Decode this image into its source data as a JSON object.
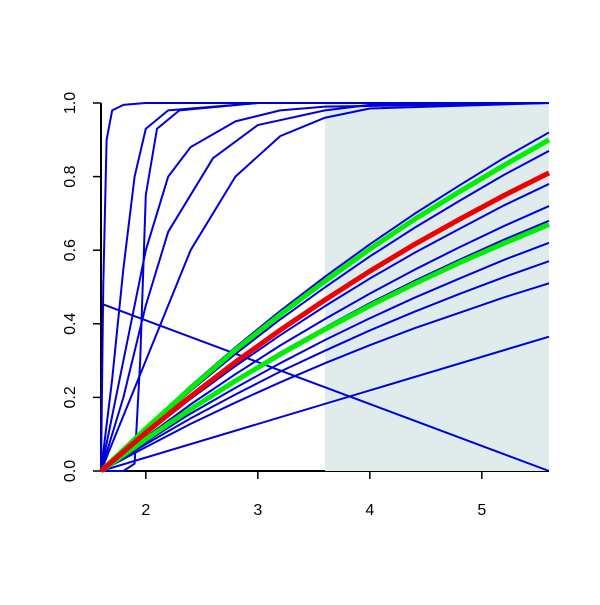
{
  "chart_data": {
    "type": "line",
    "xlim": [
      1.6,
      5.6
    ],
    "ylim": [
      0,
      1
    ],
    "xticks": [
      2,
      3,
      4,
      5
    ],
    "yticks": [
      {
        "value": 0,
        "label": "0.0"
      },
      0.2,
      0.4,
      0.6,
      0.8,
      {
        "value": 1,
        "label": "1.0"
      }
    ],
    "shaded_region": [
      3.6,
      5.6
    ],
    "shade_color": "#e0ecec",
    "series": [
      {
        "color": "#0000dd",
        "width": 2,
        "x": [
          1.6,
          1.62,
          1.65,
          1.7,
          1.8,
          2.0,
          5.6
        ],
        "values": [
          0,
          0.5,
          0.9,
          0.98,
          0.995,
          1,
          1
        ]
      },
      {
        "color": "#0000dd",
        "width": 2,
        "x": [
          1.6,
          1.7,
          1.8,
          1.9,
          2.0,
          2.2,
          3.0,
          5.6
        ],
        "values": [
          0,
          0.25,
          0.55,
          0.8,
          0.93,
          0.98,
          1,
          1
        ]
      },
      {
        "color": "#0000dd",
        "width": 2,
        "x": [
          1.6,
          1.8,
          1.9,
          1.95,
          2.0,
          2.1,
          2.3,
          3.0,
          5.6
        ],
        "values": [
          0,
          0,
          0.02,
          0.3,
          0.75,
          0.93,
          0.98,
          1,
          1
        ]
      },
      {
        "color": "#0000dd",
        "width": 2,
        "x": [
          1.6,
          1.8,
          2.0,
          2.2,
          2.4,
          2.8,
          3.2,
          3.6,
          5.6
        ],
        "values": [
          0,
          0.3,
          0.6,
          0.8,
          0.88,
          0.95,
          0.98,
          0.99,
          1
        ]
      },
      {
        "color": "#0000dd",
        "width": 2,
        "x": [
          1.6,
          1.8,
          2.0,
          2.2,
          2.6,
          3.0,
          3.6,
          4.0,
          5.6
        ],
        "values": [
          0,
          0.2,
          0.45,
          0.65,
          0.85,
          0.94,
          0.98,
          0.995,
          1
        ]
      },
      {
        "color": "#0000dd",
        "width": 2,
        "x": [
          1.6,
          2.0,
          2.4,
          2.8,
          3.2,
          3.6,
          4.0,
          5.6
        ],
        "values": [
          0,
          0.3,
          0.6,
          0.8,
          0.91,
          0.96,
          0.985,
          1
        ]
      },
      {
        "color": "#0000dd",
        "width": 2,
        "x": [
          1.6,
          2.0,
          2.4,
          2.8,
          3.2,
          3.6,
          4.0,
          4.4,
          4.8,
          5.2,
          5.6
        ],
        "values": [
          0,
          0.118,
          0.231,
          0.336,
          0.435,
          0.528,
          0.616,
          0.699,
          0.776,
          0.851,
          0.92
        ]
      },
      {
        "color": "#0000dd",
        "width": 2,
        "x": [
          1.6,
          2.0,
          2.4,
          2.8,
          3.2,
          3.6,
          4.0,
          4.4,
          4.8,
          5.2,
          5.6
        ],
        "values": [
          0,
          0.111,
          0.218,
          0.318,
          0.412,
          0.499,
          0.583,
          0.661,
          0.734,
          0.805,
          0.87
        ]
      },
      {
        "color": "#0000dd",
        "width": 2,
        "x": [
          1.6,
          2.0,
          2.4,
          2.8,
          3.2,
          3.6,
          4.0,
          4.4,
          4.8,
          5.2,
          5.6
        ],
        "values": [
          0,
          0.1,
          0.196,
          0.285,
          0.369,
          0.448,
          0.523,
          0.593,
          0.658,
          0.722,
          0.78
        ]
      },
      {
        "color": "#0000dd",
        "width": 2,
        "x": [
          1.6,
          2.0,
          2.4,
          2.8,
          3.2,
          3.6,
          4.0,
          4.4,
          4.8,
          5.2,
          5.6
        ],
        "values": [
          0,
          0.092,
          0.181,
          0.263,
          0.341,
          0.413,
          0.482,
          0.547,
          0.608,
          0.666,
          0.72
        ]
      },
      {
        "color": "#0000dd",
        "width": 2,
        "x": [
          1.6,
          2.0,
          2.4,
          2.8,
          3.2,
          3.6,
          4.0,
          4.4,
          4.8,
          5.2,
          5.6
        ],
        "values": [
          0,
          0.087,
          0.171,
          0.248,
          0.322,
          0.39,
          0.456,
          0.517,
          0.574,
          0.629,
          0.68
        ]
      },
      {
        "color": "#0000dd",
        "width": 2,
        "x": [
          1.6,
          2.0,
          2.4,
          2.8,
          3.2,
          3.6,
          4.0,
          4.4,
          4.8,
          5.2,
          5.6
        ],
        "values": [
          0,
          0.079,
          0.156,
          0.226,
          0.293,
          0.356,
          0.415,
          0.471,
          0.523,
          0.574,
          0.62
        ]
      },
      {
        "color": "#0000dd",
        "width": 2,
        "x": [
          1.6,
          2.0,
          2.4,
          2.8,
          3.2,
          3.6,
          4.0,
          4.4,
          4.8,
          5.2,
          5.6
        ],
        "values": [
          0,
          0.073,
          0.143,
          0.208,
          0.27,
          0.327,
          0.382,
          0.433,
          0.481,
          0.527,
          0.57
        ]
      },
      {
        "color": "#0000dd",
        "width": 2,
        "x": [
          1.6,
          2.0,
          2.4,
          2.8,
          3.2,
          3.6,
          4.0,
          4.4,
          4.8,
          5.2,
          5.6
        ],
        "values": [
          0,
          0.065,
          0.128,
          0.186,
          0.241,
          0.293,
          0.342,
          0.388,
          0.43,
          0.472,
          0.51
        ]
      },
      {
        "color": "#0000dd",
        "width": 2,
        "x": [
          1.6,
          5.6
        ],
        "values": [
          0,
          0.365
        ]
      },
      {
        "color": "#0000dd",
        "width": 2,
        "x": [
          1.6,
          5.6
        ],
        "values": [
          0.455,
          0
        ]
      },
      {
        "color": "#00ee00",
        "width": 5,
        "x": [
          1.6,
          2.0,
          2.4,
          2.8,
          3.2,
          3.6,
          4.0,
          4.4,
          4.8,
          5.2,
          5.6
        ],
        "values": [
          0,
          0.115,
          0.225,
          0.329,
          0.425,
          0.516,
          0.603,
          0.684,
          0.759,
          0.831,
          0.9
        ]
      },
      {
        "color": "#00ee00",
        "width": 5,
        "x": [
          1.6,
          2.0,
          2.4,
          2.8,
          3.2,
          3.6,
          4.0,
          4.4,
          4.8,
          5.2,
          5.6
        ],
        "values": [
          0,
          0.086,
          0.168,
          0.245,
          0.317,
          0.385,
          0.449,
          0.509,
          0.566,
          0.619,
          0.67
        ]
      },
      {
        "color": "#ee0000",
        "width": 5,
        "x": [
          1.6,
          2.0,
          2.4,
          2.8,
          3.2,
          3.6,
          4.0,
          4.4,
          4.8,
          5.2,
          5.6
        ],
        "values": [
          0,
          0.104,
          0.203,
          0.296,
          0.383,
          0.465,
          0.543,
          0.616,
          0.684,
          0.749,
          0.81
        ]
      }
    ]
  }
}
